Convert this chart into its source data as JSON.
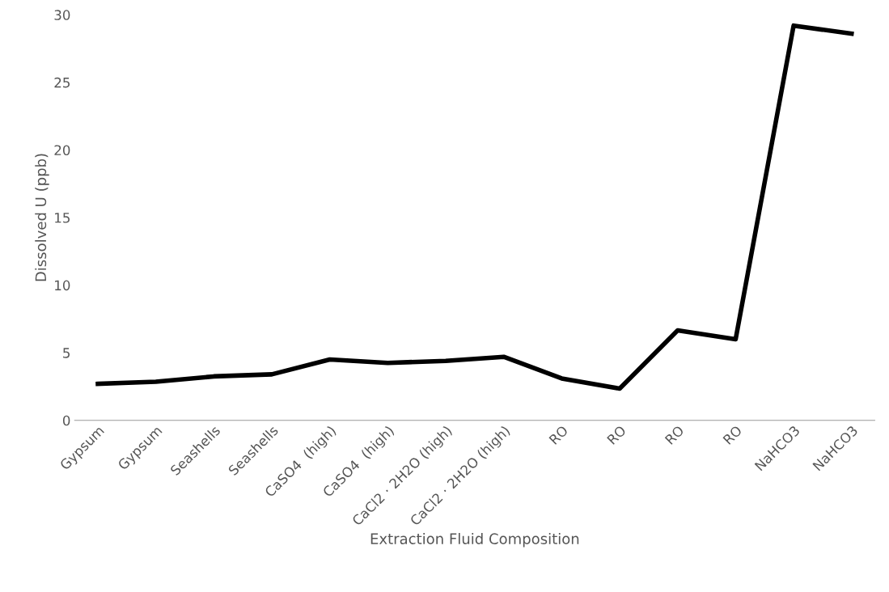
{
  "chart_data": {
    "type": "line",
    "xlabel": "Extraction Fluid Composition",
    "ylabel": "Dissolved U (ppb)",
    "categories": [
      "Gypsum",
      "Gypsum",
      "Seashells",
      "Seashells",
      "CaSO4  (high)",
      "CaSO4  (high)",
      "CaCl2 · 2H2O (high)",
      "CaCl2 · 2H2O (high)",
      "RO",
      "RO",
      "RO",
      "RO",
      "NaHCO3",
      "NaHCO3"
    ],
    "series": [
      {
        "color": "#000000",
        "values": [
          2.7,
          2.85,
          3.25,
          3.4,
          4.5,
          4.25,
          4.4,
          4.7,
          3.1,
          2.35,
          6.65,
          6.0,
          29.2,
          28.6
        ]
      }
    ],
    "ylim": [
      0,
      30
    ],
    "yticks": [
      0,
      5,
      10,
      15,
      20,
      25,
      30
    ],
    "grid": false,
    "legend": false,
    "marker": "none",
    "line_style": "solid"
  }
}
